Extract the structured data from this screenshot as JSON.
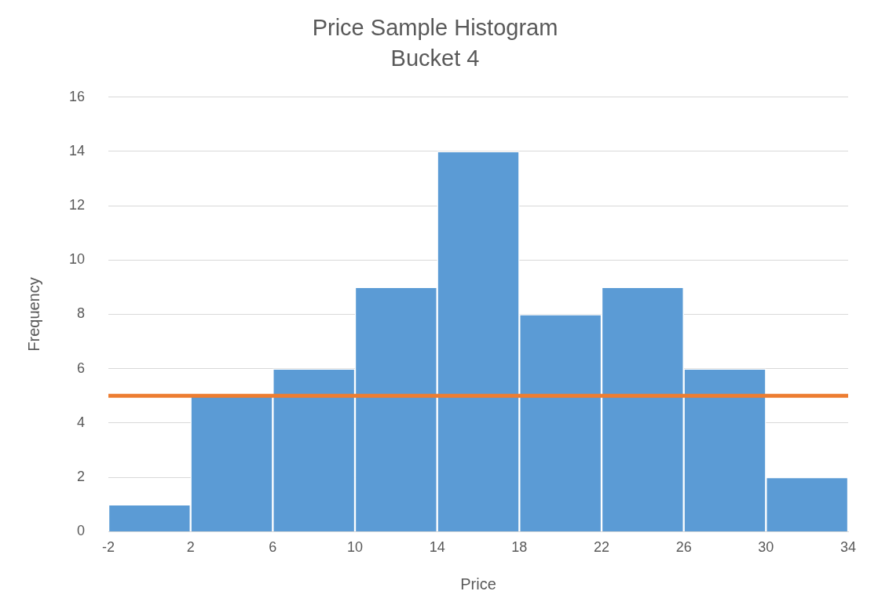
{
  "chart_data": {
    "type": "histogram",
    "title": "Price Sample Histogram",
    "subtitle": "Bucket 4",
    "x_label": "Price",
    "y_label": "Frequency",
    "bins": [
      -2,
      2,
      6,
      10,
      14,
      18,
      22,
      26,
      30,
      34
    ],
    "values": [
      1,
      5,
      6,
      9,
      14,
      8,
      9,
      6,
      2
    ],
    "color": "#5b9bd5",
    "reference_line": {
      "y": 5,
      "color": "#ed7d31"
    },
    "xlim": [
      -2,
      34
    ],
    "xticks": [
      -2,
      2,
      6,
      10,
      14,
      18,
      22,
      26,
      30,
      34
    ],
    "ylim": [
      0,
      16
    ],
    "yticks": [
      0,
      2,
      4,
      6,
      8,
      10,
      12,
      14,
      16
    ],
    "grid": true
  }
}
